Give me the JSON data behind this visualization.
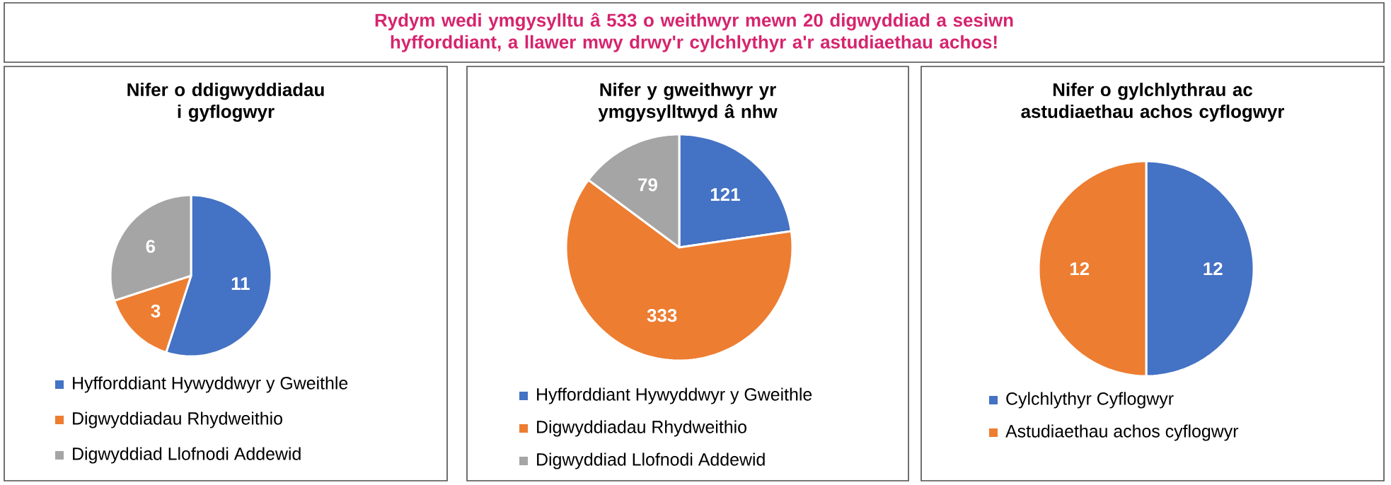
{
  "chart_data": [
    {
      "type": "other",
      "title": "Rydym wedi ymgysylltu â 533 o weithwyr mewn 20 digwyddiad a sesiwn hyfforddiant, a llawer mwy drwy'r cylchlythyr a'r astudiaethau achos!"
    },
    {
      "type": "pie",
      "title": "Nifer o ddigwyddiadau i gyflogwyr",
      "categories": [
        "Hyfforddiant Hywyddwyr y Gweithle",
        "Digwyddiadau Rhydweithio",
        "Digwyddiad Llofnodi Addewid"
      ],
      "values": [
        11,
        3,
        6
      ],
      "colors": [
        "#4472c4",
        "#ed7d31",
        "#a5a5a5"
      ],
      "data_labels": true,
      "legend": "bottom"
    },
    {
      "type": "pie",
      "title": "Nifer y gweithwyr yr ymgysylltwyd â nhw",
      "categories": [
        "Hyfforddiant Hywyddwyr y Gweithle",
        "Digwyddiadau Rhydweithio",
        "Digwyddiad Llofnodi Addewid"
      ],
      "values": [
        121,
        333,
        79
      ],
      "colors": [
        "#4472c4",
        "#ed7d31",
        "#a5a5a5"
      ],
      "data_labels": true,
      "legend": "bottom"
    },
    {
      "type": "pie",
      "title": "Nifer o gylchlythrau ac astudiaethau achos cyflogwyr",
      "categories": [
        "Cylchlythyr Cyflogwyr",
        "Astudiaethau achos cyflogwyr"
      ],
      "values": [
        12,
        12
      ],
      "colors": [
        "#4472c4",
        "#ed7d31"
      ],
      "data_labels": true,
      "legend": "bottom"
    }
  ]
}
